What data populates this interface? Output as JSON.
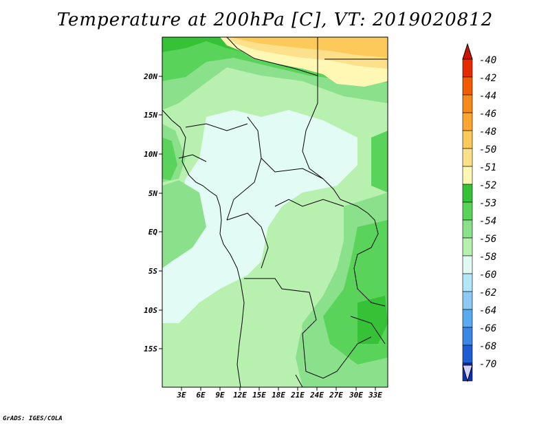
{
  "title": "Temperature at 200hPa [C], VT: 2019020812",
  "credit": "GrADS: IGES/COLA",
  "lat_labels": [
    "20N",
    "15N",
    "10N",
    "5N",
    "EQ",
    "5S",
    "10S",
    "15S"
  ],
  "lon_labels": [
    "3E",
    "6E",
    "9E",
    "12E",
    "15E",
    "18E",
    "21E",
    "24E",
    "27E",
    "30E",
    "33E"
  ],
  "colorbar": {
    "labels": [
      "-40",
      "-42",
      "-44",
      "-46",
      "-48",
      "-50",
      "-51",
      "-52",
      "-53",
      "-54",
      "-56",
      "-58",
      "-60",
      "-62",
      "-64",
      "-66",
      "-68",
      "-70"
    ],
    "colors": [
      "#e62b00",
      "#f25c00",
      "#f7891a",
      "#fca530",
      "#fcc95a",
      "#fde08c",
      "#fff7b4",
      "#36c236",
      "#5ad35a",
      "#8be08b",
      "#b8f0b0",
      "#e2fbf5",
      "#b4e6fa",
      "#8ccaf2",
      "#5aaaf0",
      "#3c86e6",
      "#1e5ed2",
      "#0a32b4",
      "#000870"
    ],
    "top_arrow_color": "#c81400",
    "bottom_arrow_color": "#d2d2fa"
  }
}
